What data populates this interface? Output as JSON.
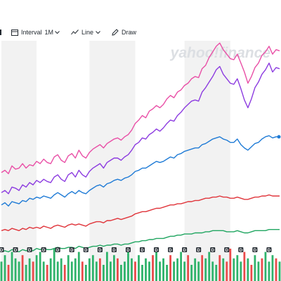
{
  "toolbar": {
    "interval_label": "Interval",
    "interval_value": "1M",
    "line_label": "Line",
    "draw_label": "Draw"
  },
  "watermark": "yahoo!finance",
  "dividend_marker": "D",
  "colors": {
    "series_pink": "#e94fa6",
    "series_purple": "#8c3be0",
    "series_blue": "#1f7bd6",
    "series_red": "#e0353b",
    "series_green": "#21a661",
    "volume_up": "#2fb36b",
    "volume_down": "#ea4a4a",
    "band": "#f2f2f2",
    "watermark": "#dcdfe3"
  },
  "chart_data": {
    "type": "line",
    "n_points": 80,
    "series": [
      {
        "key": "pink",
        "values": [
          232,
          234,
          231,
          238,
          235,
          236,
          240,
          236,
          239,
          238,
          242,
          240,
          244,
          241,
          240,
          246,
          248,
          243,
          241,
          247,
          249,
          245,
          252,
          247,
          245,
          250,
          253,
          255,
          257,
          254,
          258,
          260,
          262,
          263,
          261,
          264,
          266,
          270,
          276,
          279,
          283,
          281,
          287,
          289,
          292,
          290,
          293,
          298,
          301,
          299,
          304,
          306,
          310,
          312,
          316,
          318,
          317,
          325,
          328,
          335,
          340,
          345,
          348,
          342,
          338,
          334,
          333,
          338,
          330,
          322,
          312,
          318,
          326,
          330,
          337,
          340,
          345,
          338,
          342,
          341
        ]
      },
      {
        "key": "purple",
        "values": [
          214,
          216,
          213,
          219,
          218,
          216,
          221,
          219,
          223,
          221,
          225,
          223,
          226,
          224,
          223,
          228,
          230,
          226,
          224,
          230,
          232,
          228,
          234,
          230,
          228,
          233,
          236,
          238,
          240,
          236,
          241,
          243,
          245,
          245,
          243,
          246,
          248,
          252,
          257,
          259,
          263,
          262,
          266,
          268,
          271,
          269,
          272,
          276,
          279,
          278,
          283,
          286,
          290,
          293,
          296,
          297,
          296,
          304,
          308,
          313,
          318,
          324,
          327,
          320,
          316,
          312,
          311,
          316,
          307,
          297,
          290,
          298,
          308,
          313,
          320,
          324,
          330,
          322,
          326,
          325
        ]
      },
      {
        "key": "blue",
        "values": [
          203,
          205,
          202,
          206,
          205,
          204,
          207,
          206,
          209,
          208,
          210,
          209,
          211,
          210,
          209,
          212,
          214,
          212,
          210,
          213,
          215,
          213,
          216,
          214,
          213,
          216,
          218,
          220,
          221,
          219,
          222,
          223,
          225,
          226,
          225,
          227,
          228,
          230,
          233,
          234,
          236,
          236,
          238,
          240,
          242,
          241,
          242,
          244,
          246,
          245,
          248,
          249,
          251,
          252,
          253,
          254,
          254,
          257,
          258,
          260,
          262,
          263,
          264,
          262,
          261,
          259,
          259,
          262,
          257,
          254,
          252,
          255,
          258,
          259,
          262,
          264,
          265,
          263,
          264,
          264
        ]
      },
      {
        "key": "red",
        "values": [
          180,
          181,
          180,
          182,
          181,
          180,
          182,
          181,
          183,
          182,
          183,
          182,
          184,
          183,
          182,
          184,
          185,
          184,
          183,
          185,
          186,
          185,
          186,
          185,
          184,
          186,
          187,
          188,
          188,
          187,
          189,
          189,
          190,
          191,
          190,
          191,
          192,
          193,
          195,
          196,
          197,
          197,
          198,
          199,
          200,
          200,
          201,
          202,
          203,
          203,
          204,
          204,
          205,
          206,
          206,
          207,
          207,
          208,
          209,
          209,
          210,
          210,
          211,
          210,
          210,
          209,
          209,
          210,
          209,
          208,
          208,
          209,
          210,
          210,
          211,
          211,
          212,
          211,
          211,
          211
        ]
      },
      {
        "key": "green",
        "values": [
          161,
          162,
          161,
          163,
          162,
          161,
          163,
          162,
          163,
          162,
          164,
          163,
          164,
          163,
          163,
          164,
          165,
          164,
          164,
          165,
          165,
          164,
          166,
          165,
          164,
          165,
          166,
          166,
          167,
          166,
          167,
          167,
          168,
          168,
          167,
          168,
          168,
          169,
          170,
          170,
          171,
          171,
          172,
          172,
          173,
          173,
          173,
          174,
          175,
          175,
          176,
          176,
          177,
          177,
          177,
          178,
          178,
          178,
          179,
          179,
          180,
          180,
          180,
          180,
          179,
          179,
          179,
          180,
          179,
          178,
          178,
          179,
          180,
          180,
          180,
          180,
          181,
          181,
          181,
          181
        ]
      }
    ],
    "volume": [
      0.6,
      0.8,
      0.5,
      0.9,
      0.7,
      0.6,
      0.8,
      0.5,
      0.7,
      0.6,
      0.8,
      0.9,
      0.6,
      0.5,
      0.7,
      1.0,
      0.6,
      0.7,
      0.5,
      0.8,
      0.6,
      0.7,
      0.9,
      0.6,
      0.5,
      0.7,
      0.8,
      0.6,
      0.7,
      0.5,
      0.9,
      0.6,
      0.8,
      0.7,
      0.5,
      0.6,
      0.9,
      0.7,
      0.6,
      0.8,
      0.5,
      0.7,
      0.6,
      0.8,
      0.9,
      0.6,
      0.7,
      0.5,
      0.8,
      0.6,
      0.7,
      0.9,
      0.6,
      0.8,
      0.5,
      0.7,
      0.6,
      0.8,
      0.7,
      0.9,
      0.6,
      0.5,
      0.8,
      0.7,
      0.6,
      1.0,
      0.7,
      0.8,
      0.6,
      0.9,
      0.7,
      0.5,
      0.8,
      0.6,
      0.7,
      0.9,
      0.6,
      0.8,
      0.7,
      0.6
    ],
    "volume_down_indices": [
      2,
      6,
      9,
      13,
      18,
      23,
      28,
      33,
      38,
      43,
      48,
      53,
      57,
      62,
      64,
      65,
      69,
      71,
      74,
      78
    ],
    "dividend_indices": [
      0,
      4,
      8,
      12,
      16,
      20,
      24,
      28,
      32,
      36,
      40,
      44,
      48,
      52,
      56,
      60,
      64,
      68,
      72,
      76
    ],
    "yrange": [
      150,
      350
    ],
    "shaded_bands": [
      [
        0,
        10
      ],
      [
        25,
        38
      ],
      [
        52,
        65
      ]
    ],
    "grid": false,
    "legend": "none"
  }
}
